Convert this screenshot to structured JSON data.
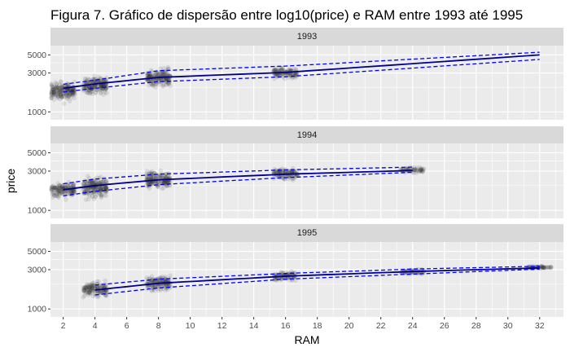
{
  "chart_data": {
    "type": "scatter",
    "title": "Figura 7. Gráfico de dispersão entre log10(price) e RAM entre 1993 até 1995",
    "xlabel": "RAM",
    "ylabel": "price",
    "x_ticks": [
      2,
      4,
      6,
      8,
      10,
      12,
      14,
      16,
      18,
      20,
      22,
      24,
      26,
      28,
      30,
      32
    ],
    "y_ticks": [
      1000,
      3000,
      5000
    ],
    "y_scale": "log10",
    "xlim": [
      1.2,
      33.5
    ],
    "ylim": [
      800,
      6500
    ],
    "grid": true,
    "legend": "none",
    "colors": {
      "points": "#333333",
      "fit_line": "#00008b",
      "ci_line": "#0000ff",
      "panel_bg": "#ebebeb",
      "strip_bg": "#d9d9d9",
      "grid": "#ffffff"
    },
    "panels": [
      {
        "label": "1993",
        "clusters": [
          {
            "ram": 2,
            "center": 1800,
            "spread": 0.13
          },
          {
            "ram": 4,
            "center": 2100,
            "spread": 0.13
          },
          {
            "ram": 8,
            "center": 2650,
            "spread": 0.12
          },
          {
            "ram": 16,
            "center": 3000,
            "spread": 0.08
          }
        ],
        "fit": {
          "x": [
            2,
            4,
            8,
            16,
            32
          ],
          "y": [
            1950,
            2200,
            2650,
            3050,
            5000
          ]
        },
        "upper": {
          "x": [
            2,
            4,
            8,
            16,
            32
          ],
          "y": [
            2180,
            2450,
            3200,
            3650,
            5400
          ]
        },
        "lower": {
          "x": [
            2,
            4,
            8,
            16,
            32
          ],
          "y": [
            1750,
            1950,
            2350,
            2700,
            4400
          ]
        }
      },
      {
        "label": "1994",
        "clusters": [
          {
            "ram": 2,
            "center": 1800,
            "spread": 0.1
          },
          {
            "ram": 4,
            "center": 1900,
            "spread": 0.14
          },
          {
            "ram": 8,
            "center": 2350,
            "spread": 0.12
          },
          {
            "ram": 16,
            "center": 2800,
            "spread": 0.08
          },
          {
            "ram": 24,
            "center": 3100,
            "spread": 0.04
          }
        ],
        "fit": {
          "x": [
            2,
            4,
            8,
            16,
            24
          ],
          "y": [
            1780,
            2000,
            2350,
            2750,
            3050
          ]
        },
        "upper": {
          "x": [
            2,
            4,
            8,
            16,
            24
          ],
          "y": [
            2100,
            2400,
            2750,
            3100,
            3350
          ]
        },
        "lower": {
          "x": [
            2,
            4,
            8,
            16,
            24
          ],
          "y": [
            1500,
            1700,
            2050,
            2500,
            2900
          ]
        }
      },
      {
        "label": "1995",
        "clusters": [
          {
            "ram": 4,
            "center": 1750,
            "spread": 0.1
          },
          {
            "ram": 8,
            "center": 2050,
            "spread": 0.1
          },
          {
            "ram": 16,
            "center": 2500,
            "spread": 0.06
          },
          {
            "ram": 24,
            "center": 2850,
            "spread": 0.04
          },
          {
            "ram": 32,
            "center": 3200,
            "spread": 0.02
          }
        ],
        "fit": {
          "x": [
            4,
            8,
            16,
            24,
            32
          ],
          "y": [
            1700,
            2050,
            2500,
            2850,
            3150
          ]
        },
        "upper": {
          "x": [
            4,
            8,
            16,
            24,
            32
          ],
          "y": [
            1950,
            2300,
            2700,
            3050,
            3300
          ]
        },
        "lower": {
          "x": [
            4,
            8,
            16,
            24,
            32
          ],
          "y": [
            1480,
            1800,
            2300,
            2650,
            3050
          ]
        }
      }
    ]
  }
}
